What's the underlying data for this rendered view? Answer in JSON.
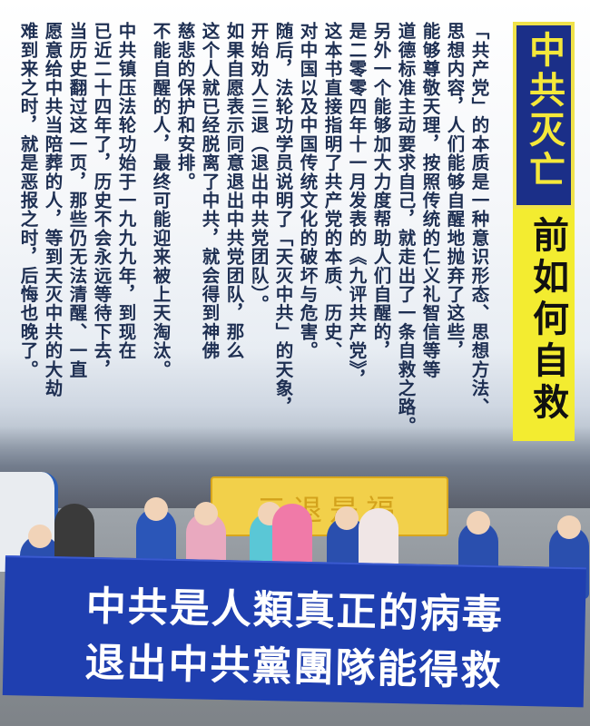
{
  "title": {
    "top": "中共灭亡",
    "bottom": "前如何自救"
  },
  "body_columns": [
    "「共产党」的本质是一种意识形态、思想方法、",
    "思想内容，人们能够自醒地抛弃了这些，",
    "能够尊敬天理，按照传统的仁义礼智信等等",
    "道德标准主动要求自己，就走出了一条自救之路。",
    "另外一个能够加大力度帮助人们自醒的，",
    "是二零零四年十一月发表的《九评共产党》，",
    "这本书直接指明了共产党的本质、历史、",
    "对中国以及中国传统文化的破坏与危害。",
    "随后，法轮功学员说明了「天灭中共」的天象，",
    "开始劝人三退（退出中共党团队）。",
    "如果自愿表示同意退出中共党团队，那么",
    "这个人就已经脱离了中共，就会得到神佛",
    "慈悲的保护和安排。",
    "不能自醒的人，最终可能迎来被上天淘汰。",
    "中共镇压法轮功始于一九九九年，到现在",
    "已近二十四年了，历史不会永远等待下去，",
    "当历史翻过这一页，那些仍无法清醒、一直",
    "愿意给中共当陪葬的人，等到天灭中共的大劫",
    "难到来之时，就是恶报之时，后悔也晚了。"
  ],
  "photo": {
    "yellow_banner_text": "三退是福",
    "blue_banner_line1": "中共是人類真正的病毒",
    "blue_banner_line2": "退出中共黨團隊能得救"
  },
  "colors": {
    "text": "#1e2f52",
    "title_blue": "#1b2f88",
    "title_yellow": "#f3ec30",
    "banner_blue": "#1f3fb0"
  }
}
